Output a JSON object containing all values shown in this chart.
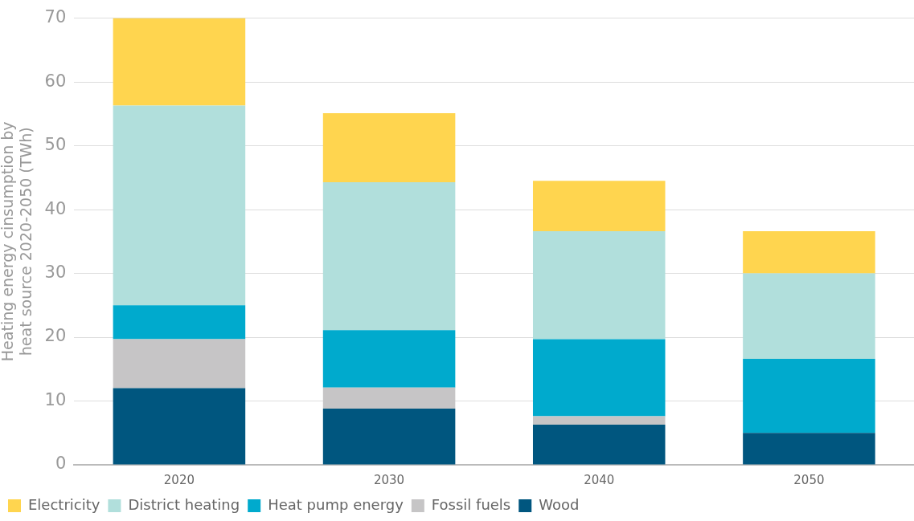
{
  "chart_data": {
    "type": "bar",
    "stacked": true,
    "ylabel": "Heating energy cinsumption by heat source 2020-2050 (TWh)",
    "categories": [
      "2020",
      "2030",
      "2040",
      "2050"
    ],
    "series": [
      {
        "name": "Wood",
        "color": "#00567f",
        "values": [
          12.0,
          8.8,
          6.3,
          5.0
        ]
      },
      {
        "name": "Fossil fuels",
        "color": "#c6c5c6",
        "values": [
          7.7,
          3.3,
          1.3,
          0
        ]
      },
      {
        "name": "Heat pump energy",
        "color": "#00aacd",
        "values": [
          5.3,
          9.0,
          12.1,
          11.6
        ]
      },
      {
        "name": "District heating",
        "color": "#b1dfdc",
        "values": [
          31.3,
          23.2,
          16.9,
          13.4
        ]
      },
      {
        "name": "Electricity",
        "color": "#ffd54f",
        "values": [
          13.7,
          10.8,
          7.9,
          6.6
        ]
      }
    ],
    "ylim": [
      0,
      70
    ],
    "yticks": [
      0,
      10,
      20,
      30,
      40,
      50,
      60,
      70
    ],
    "grid": "y",
    "legend": "bottom"
  }
}
